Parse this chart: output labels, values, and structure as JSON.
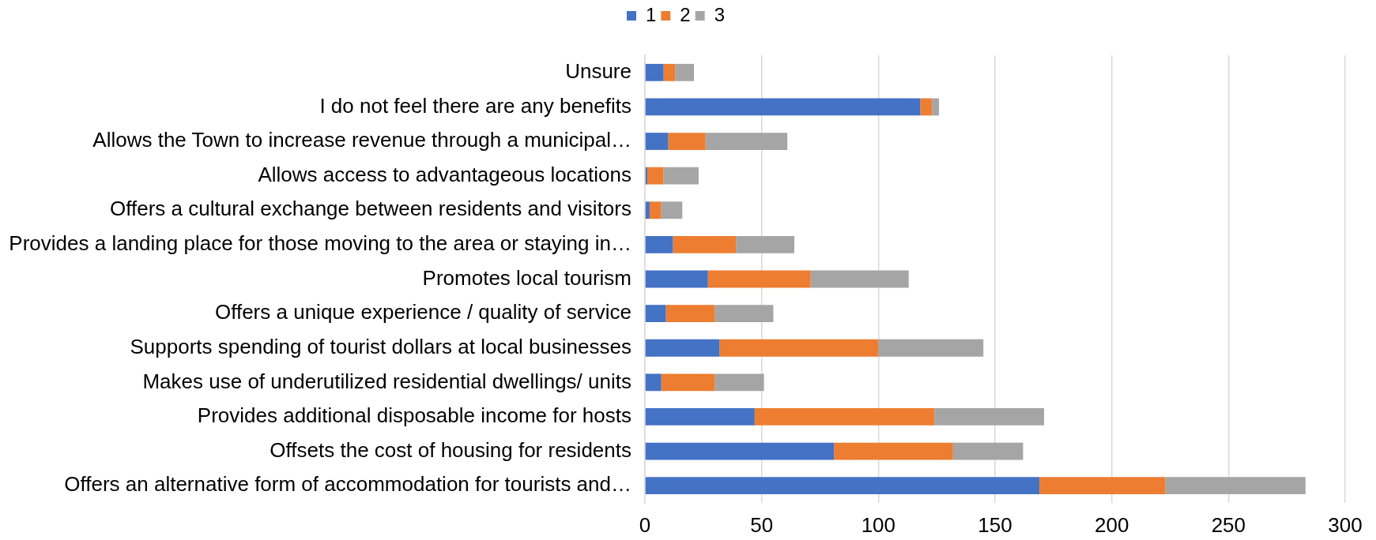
{
  "chart_data": {
    "type": "bar",
    "orientation": "horizontal",
    "stacked": true,
    "categories": [
      "Unsure",
      "I do not feel there are any benefits",
      "Allows the Town to increase revenue through a municipal…",
      "Allows access to advantageous locations",
      "Offers a cultural exchange between residents and visitors",
      "Provides a landing place for those moving to the area or staying in…",
      "Promotes local tourism",
      "Offers a unique experience / quality of service",
      "Supports spending of tourist dollars at local businesses",
      "Makes use of underutilized residential dwellings/ units",
      "Provides additional disposable income for hosts",
      "Offsets the cost of housing for residents",
      "Offers an alternative form of accommodation for tourists and…"
    ],
    "series": [
      {
        "name": "1",
        "color": "#4472c4",
        "values": [
          8,
          118,
          10,
          1,
          2,
          12,
          27,
          9,
          32,
          7,
          47,
          81,
          169
        ]
      },
      {
        "name": "2",
        "color": "#ed7d31",
        "values": [
          5,
          5,
          16,
          7,
          5,
          27,
          44,
          21,
          68,
          23,
          77,
          51,
          54
        ]
      },
      {
        "name": "3",
        "color": "#a5a5a5",
        "values": [
          8,
          3,
          35,
          15,
          9,
          25,
          42,
          25,
          45,
          21,
          47,
          30,
          60
        ]
      }
    ],
    "xlim": [
      0,
      300
    ],
    "xticks": [
      0,
      50,
      100,
      150,
      200,
      250,
      300
    ],
    "grid": "x",
    "legend": "top"
  }
}
